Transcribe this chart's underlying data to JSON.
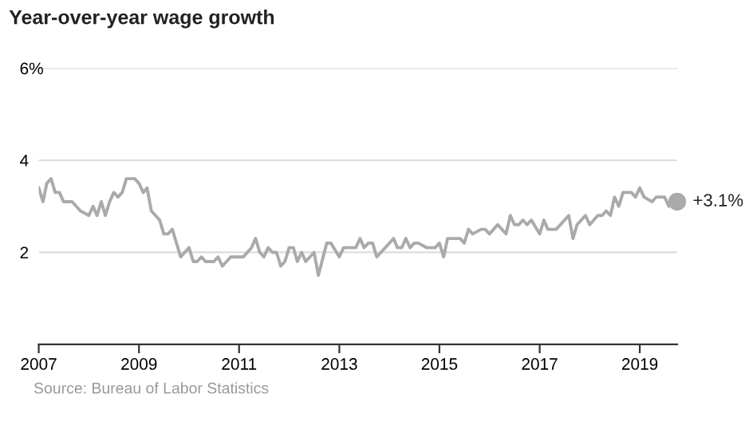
{
  "chart_data": {
    "type": "line",
    "title": "Year-over-year wage growth",
    "annotations": [
      "Source: Bureau of Labor Statistics"
    ],
    "xlim": [
      "2007-01",
      "2019-10"
    ],
    "xticks": [
      {
        "value": "2007-01",
        "label": "2007"
      },
      {
        "value": "2009-01",
        "label": "2009"
      },
      {
        "value": "2011-01",
        "label": "2011"
      },
      {
        "value": "2013-01",
        "label": "2013"
      },
      {
        "value": "2015-01",
        "label": "2015"
      },
      {
        "value": "2017-01",
        "label": "2017"
      },
      {
        "value": "2019-01",
        "label": "2019"
      }
    ],
    "ylim": [
      0,
      6
    ],
    "yticks": [
      2,
      4,
      {
        "value": 6,
        "label": "6%"
      }
    ],
    "grid": "y",
    "legend": false,
    "series": [
      {
        "color": "#aaaaaa",
        "marker": "none",
        "x": [
          "2007-01",
          "2007-02",
          "2007-03",
          "2007-04",
          "2007-05",
          "2007-06",
          "2007-07",
          "2007-09",
          "2007-11",
          "2008-01",
          "2008-02",
          "2008-03",
          "2008-04",
          "2008-05",
          "2008-06",
          "2008-07",
          "2008-08",
          "2008-09",
          "2008-10",
          "2008-12",
          "2009-01",
          "2009-02",
          "2009-03",
          "2009-04",
          "2009-06",
          "2009-07",
          "2009-08",
          "2009-09",
          "2009-11",
          "2010-01",
          "2010-02",
          "2010-03",
          "2010-04",
          "2010-05",
          "2010-07",
          "2010-08",
          "2010-09",
          "2010-11",
          "2011-02",
          "2011-04",
          "2011-05",
          "2011-06",
          "2011-07",
          "2011-08",
          "2011-09",
          "2011-10",
          "2011-11",
          "2011-12",
          "2012-01",
          "2012-02",
          "2012-03",
          "2012-04",
          "2012-05",
          "2012-07",
          "2012-08",
          "2012-10",
          "2012-11",
          "2013-01",
          "2013-02",
          "2013-04",
          "2013-05",
          "2013-06",
          "2013-07",
          "2013-08",
          "2013-09",
          "2013-10",
          "2014-02",
          "2014-03",
          "2014-04",
          "2014-05",
          "2014-06",
          "2014-07",
          "2014-08",
          "2014-10",
          "2014-12",
          "2015-01",
          "2015-02",
          "2015-03",
          "2015-04",
          "2015-06",
          "2015-07",
          "2015-08",
          "2015-09",
          "2015-11",
          "2015-12",
          "2016-01",
          "2016-03",
          "2016-05",
          "2016-06",
          "2016-07",
          "2016-08",
          "2016-09",
          "2016-10",
          "2016-11",
          "2017-01",
          "2017-02",
          "2017-03",
          "2017-05",
          "2017-06",
          "2017-08",
          "2017-09",
          "2017-10",
          "2017-12",
          "2018-01",
          "2018-03",
          "2018-04",
          "2018-05",
          "2018-06",
          "2018-07",
          "2018-08",
          "2018-09",
          "2018-11",
          "2018-12",
          "2019-01",
          "2019-02",
          "2019-04",
          "2019-05",
          "2019-07",
          "2019-08",
          "2019-09",
          "2019-10"
        ],
        "values": [
          3.4,
          3.1,
          3.5,
          3.6,
          3.3,
          3.3,
          3.1,
          3.1,
          2.9,
          2.8,
          3.0,
          2.8,
          3.1,
          2.8,
          3.1,
          3.3,
          3.2,
          3.3,
          3.6,
          3.6,
          3.5,
          3.3,
          3.4,
          2.9,
          2.7,
          2.4,
          2.4,
          2.5,
          1.9,
          2.1,
          1.8,
          1.8,
          1.9,
          1.8,
          1.8,
          1.9,
          1.7,
          1.9,
          1.9,
          2.1,
          2.3,
          2.0,
          1.9,
          2.1,
          2.0,
          2.0,
          1.7,
          1.8,
          2.1,
          2.1,
          1.8,
          2.0,
          1.8,
          2.0,
          1.5,
          2.2,
          2.2,
          1.9,
          2.1,
          2.1,
          2.1,
          2.3,
          2.1,
          2.2,
          2.2,
          1.9,
          2.3,
          2.1,
          2.1,
          2.3,
          2.1,
          2.2,
          2.2,
          2.1,
          2.1,
          2.2,
          1.9,
          2.3,
          2.3,
          2.3,
          2.2,
          2.5,
          2.4,
          2.5,
          2.5,
          2.4,
          2.6,
          2.4,
          2.8,
          2.6,
          2.6,
          2.7,
          2.6,
          2.7,
          2.4,
          2.7,
          2.5,
          2.5,
          2.6,
          2.8,
          2.3,
          2.6,
          2.8,
          2.6,
          2.8,
          2.8,
          2.9,
          2.8,
          3.2,
          3.0,
          3.3,
          3.3,
          3.2,
          3.4,
          3.2,
          3.1,
          3.2,
          3.2,
          3.0,
          3.1,
          3.1
        ]
      },
      {
        "type": "scatter",
        "color": "#aaaaaa",
        "marker": "circle",
        "x": [
          "2019-10"
        ],
        "values": [
          3.1
        ],
        "value_labels": [
          "+3.1%"
        ]
      }
    ]
  }
}
